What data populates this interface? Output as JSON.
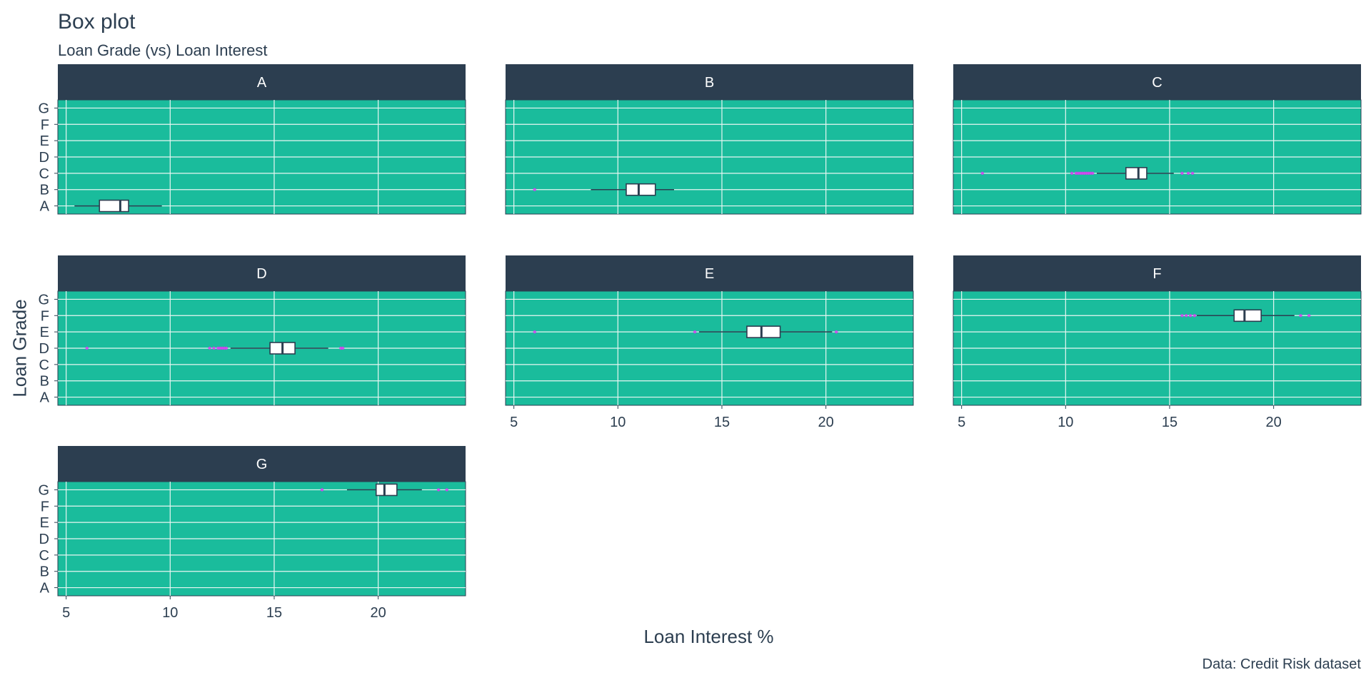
{
  "chart_data": {
    "type": "box",
    "title": "Box plot",
    "subtitle": "Loan Grade (vs) Loan Interest",
    "xlabel": "Loan Interest %",
    "ylabel": "Loan Grade",
    "caption": "Data: Credit Risk dataset",
    "xlim": [
      4.6,
      24.2
    ],
    "xticks": [
      5,
      10,
      15,
      20
    ],
    "categories": [
      "A",
      "B",
      "C",
      "D",
      "E",
      "F",
      "G"
    ],
    "grid": true,
    "colors": {
      "panel_bg": "#1abc9c",
      "strip_bg": "#2c3e50",
      "grid": "#e8f6f2",
      "box_fill": "#ffffff",
      "box_line": "#2c3e50",
      "outlier": "#d63cf0"
    },
    "facets": [
      {
        "name": "A",
        "grade": "A",
        "whisker_low": 5.4,
        "q1": 6.6,
        "median": 7.6,
        "q3": 8.0,
        "whisker_high": 9.6,
        "outliers": []
      },
      {
        "name": "B",
        "grade": "B",
        "whisker_low": 8.7,
        "q1": 10.4,
        "median": 11.0,
        "q3": 11.8,
        "whisker_high": 12.7,
        "outliers": [
          6.0
        ]
      },
      {
        "name": "C",
        "grade": "C",
        "whisker_low": 11.5,
        "q1": 12.9,
        "median": 13.5,
        "q3": 13.9,
        "whisker_high": 15.2,
        "outliers": [
          6.0,
          10.3,
          10.5,
          10.6,
          10.7,
          10.8,
          10.9,
          11.0,
          11.1,
          11.2,
          11.3,
          15.6,
          15.9,
          16.1
        ]
      },
      {
        "name": "D",
        "grade": "D",
        "whisker_low": 12.9,
        "q1": 14.8,
        "median": 15.4,
        "q3": 16.0,
        "whisker_high": 17.6,
        "outliers": [
          6.0,
          11.9,
          12.1,
          12.3,
          12.4,
          12.5,
          12.6,
          12.7,
          18.2,
          18.3
        ]
      },
      {
        "name": "E",
        "grade": "E",
        "whisker_low": 13.9,
        "q1": 16.2,
        "median": 16.9,
        "q3": 17.8,
        "whisker_high": 20.3,
        "outliers": [
          6.0,
          13.7,
          20.5
        ]
      },
      {
        "name": "F",
        "grade": "F",
        "whisker_low": 16.3,
        "q1": 18.1,
        "median": 18.6,
        "q3": 19.4,
        "whisker_high": 21.0,
        "outliers": [
          15.6,
          15.8,
          16.0,
          16.2,
          21.3,
          21.7
        ]
      },
      {
        "name": "G",
        "grade": "G",
        "whisker_low": 18.5,
        "q1": 19.9,
        "median": 20.3,
        "q3": 20.9,
        "whisker_high": 22.1,
        "outliers": [
          17.3,
          22.9,
          23.3
        ]
      }
    ]
  }
}
